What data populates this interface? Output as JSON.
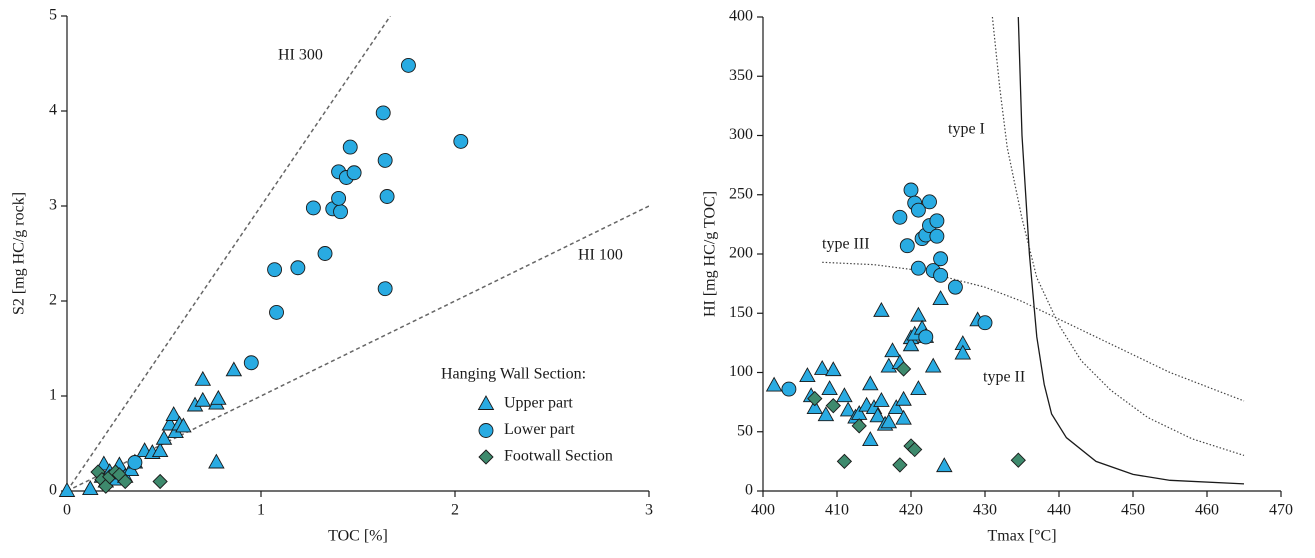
{
  "chart_data": [
    {
      "type": "scatter",
      "xlabel": "TOC [%]",
      "ylabel": "S2 [mg HC/g rock]",
      "xlim": [
        0,
        3
      ],
      "ylim": [
        0,
        5
      ],
      "xticks": [
        0,
        1,
        2,
        3
      ],
      "yticks": [
        0,
        1,
        2,
        3,
        4,
        5
      ],
      "legend": "lower right",
      "legend_title": "Hanging Wall Section:",
      "reference_lines": [
        {
          "label": "HI 300",
          "slope": 3
        },
        {
          "label": "HI 100",
          "slope": 1
        }
      ],
      "series": [
        {
          "name": "Upper part",
          "marker": "triangle",
          "color": "#29abe2",
          "x": [
            0,
            0.12,
            0.18,
            0.19,
            0.2,
            0.22,
            0.25,
            0.27,
            0.3,
            0.33,
            0.35,
            0.4,
            0.44,
            0.48,
            0.5,
            0.53,
            0.55,
            0.56,
            0.58,
            0.6,
            0.66,
            0.7,
            0.7,
            0.77,
            0.78,
            0.77,
            0.86
          ],
          "values": [
            0,
            0.02,
            0.15,
            0.28,
            0.1,
            0.2,
            0.12,
            0.27,
            0.15,
            0.22,
            0.3,
            0.42,
            0.4,
            0.42,
            0.55,
            0.7,
            0.8,
            0.62,
            0.7,
            0.68,
            0.9,
            0.95,
            1.17,
            0.92,
            0.97,
            0.3,
            1.27
          ]
        },
        {
          "name": "Lower part",
          "marker": "circle",
          "color": "#29abe2",
          "x": [
            0.35,
            0.95,
            1.08,
            1.07,
            1.19,
            1.33,
            1.27,
            1.37,
            1.41,
            1.4,
            1.4,
            1.44,
            1.46,
            1.48,
            1.63,
            1.64,
            1.65,
            1.64,
            1.76,
            2.03
          ],
          "values": [
            0.3,
            1.35,
            1.88,
            2.33,
            2.35,
            2.5,
            2.98,
            2.97,
            2.94,
            3.08,
            3.36,
            3.3,
            3.62,
            3.35,
            3.98,
            3.48,
            3.1,
            2.13,
            4.48,
            3.68
          ]
        },
        {
          "name": "Footwall Section",
          "marker": "diamond",
          "color": "#3e8a6d",
          "x": [
            0.16,
            0.18,
            0.2,
            0.22,
            0.25,
            0.27,
            0.3,
            0.48
          ],
          "values": [
            0.2,
            0.12,
            0.05,
            0.15,
            0.2,
            0.17,
            0.1,
            0.1
          ]
        }
      ]
    },
    {
      "type": "scatter",
      "xlabel": "Tmax [°C]",
      "ylabel": "HI  [mg HC/g TOC]",
      "xlim": [
        400,
        470
      ],
      "ylim": [
        0,
        400
      ],
      "xticks": [
        400,
        410,
        420,
        430,
        440,
        450,
        460,
        470
      ],
      "yticks": [
        0,
        50,
        100,
        150,
        200,
        250,
        300,
        350,
        400
      ],
      "curves": [
        {
          "name": "type I",
          "style": "dotted",
          "x": [
            431,
            432,
            433,
            435,
            437,
            440,
            443,
            447,
            452,
            458,
            465
          ],
          "values": [
            400,
            340,
            290,
            230,
            180,
            140,
            110,
            85,
            62,
            44,
            30
          ]
        },
        {
          "name": "type II",
          "style": "solid",
          "x": [
            434.5,
            435,
            436,
            437,
            438,
            439,
            441,
            445,
            450,
            455,
            465
          ],
          "values": [
            400,
            300,
            200,
            130,
            90,
            65,
            45,
            25,
            14,
            9,
            6
          ]
        },
        {
          "name": "type III",
          "style": "dotted",
          "x": [
            408,
            415,
            420,
            425,
            430,
            435,
            440,
            445,
            450,
            455,
            460,
            465
          ],
          "values": [
            193,
            191,
            187,
            180,
            172,
            160,
            145,
            130,
            115,
            100,
            88,
            76
          ]
        }
      ],
      "series": [
        {
          "name": "Upper part",
          "marker": "triangle",
          "color": "#29abe2",
          "x": [
            401.5,
            406,
            406.5,
            407,
            408,
            408.5,
            409,
            409.5,
            411,
            411.5,
            412.5,
            413,
            414,
            414.5,
            414.5,
            415,
            415.5,
            416,
            416,
            416.5,
            417,
            417,
            417.5,
            418,
            418.5,
            419,
            419,
            420,
            420,
            420.5,
            421,
            421,
            421.5,
            422,
            423,
            424,
            424.5,
            427,
            427,
            429
          ],
          "values": [
            89,
            97,
            80,
            70,
            103,
            64,
            86,
            102,
            80,
            68,
            62,
            65,
            72,
            90,
            43,
            70,
            63,
            152,
            76,
            56,
            58,
            105,
            118,
            70,
            108,
            77,
            61,
            129,
            123,
            132,
            148,
            86,
            137,
            130,
            105,
            162,
            21,
            124,
            116,
            144
          ]
        },
        {
          "name": "Lower part",
          "marker": "circle",
          "color": "#29abe2",
          "x": [
            403.5,
            418.5,
            419.5,
            420,
            420.5,
            421,
            421,
            421.5,
            422,
            422,
            422.5,
            422.5,
            423,
            423.5,
            423.5,
            424,
            424,
            426,
            430
          ],
          "values": [
            86,
            231,
            207,
            254,
            243,
            237,
            188,
            213,
            216,
            130,
            244,
            224,
            186,
            228,
            215,
            182,
            196,
            172,
            142
          ]
        },
        {
          "name": "Footwall Section",
          "marker": "diamond",
          "color": "#3e8a6d",
          "x": [
            407,
            409.5,
            411,
            413,
            418.5,
            419,
            420,
            420.5,
            434.5
          ],
          "values": [
            78,
            72,
            25,
            55,
            22,
            103,
            38,
            35,
            26
          ]
        }
      ]
    }
  ]
}
